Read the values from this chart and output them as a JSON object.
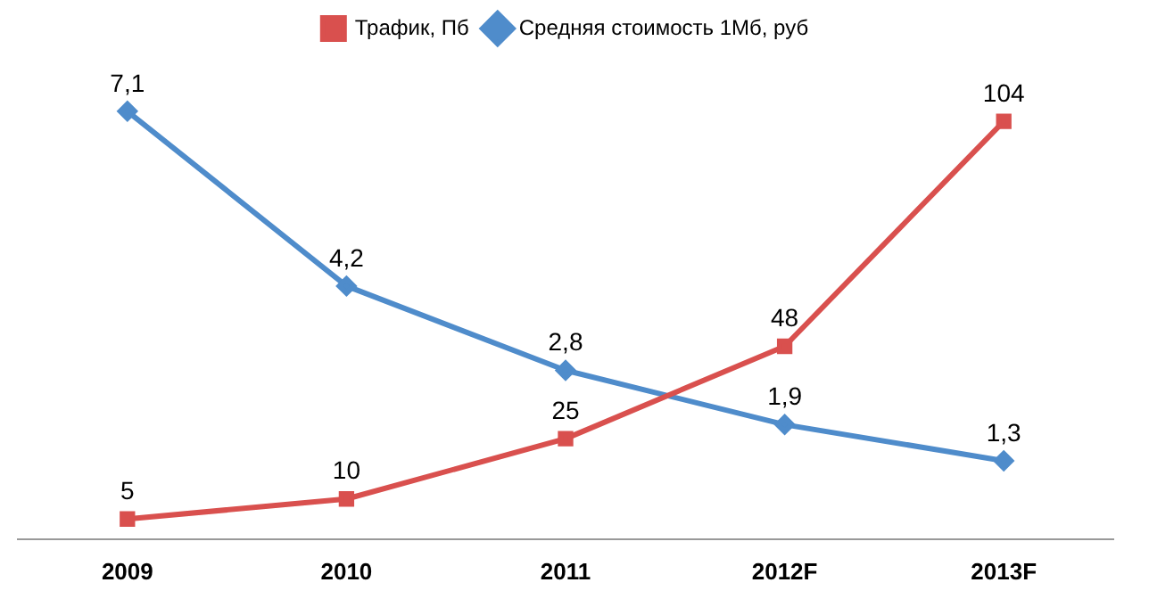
{
  "chart_data": {
    "type": "line",
    "categories": [
      "2009",
      "2010",
      "2011",
      "2012F",
      "2013F"
    ],
    "series": [
      {
        "name": "Трафик, Пб",
        "color": "#d9504e",
        "values": [
          5,
          10,
          25,
          48,
          104
        ],
        "value_labels": [
          "5",
          "10",
          "25",
          "48",
          "104"
        ],
        "marker": "square"
      },
      {
        "name": "Средняя стоимость 1Мб, руб",
        "color": "#4f8ccb",
        "values": [
          7.1,
          4.2,
          2.8,
          1.9,
          1.3
        ],
        "value_labels": [
          "7,1",
          "4,2",
          "2,8",
          "1,9",
          "1,3"
        ],
        "marker": "diamond",
        "axis": "y2"
      }
    ],
    "tick_labels": "x",
    "legend": "top",
    "grid": false
  }
}
